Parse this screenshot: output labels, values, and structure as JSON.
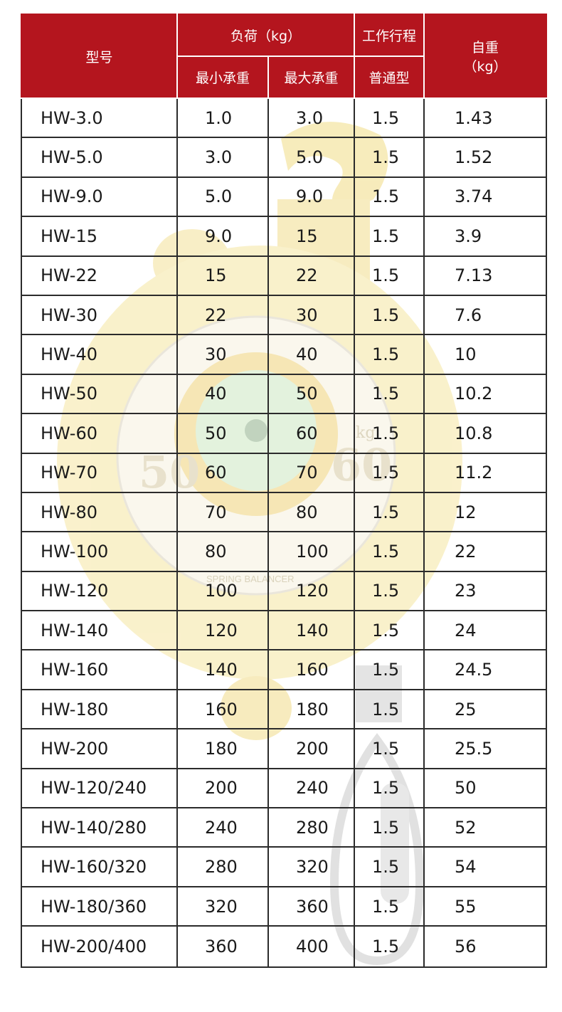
{
  "header": {
    "model": "型号",
    "load": "负荷（kg）",
    "load_min": "最小承重",
    "load_max": "最大承重",
    "stroke": "工作行程",
    "stroke_type": "普通型",
    "weight_line1": "自重",
    "weight_line2": "（kg）"
  },
  "rows": [
    {
      "model": "HW-3.0",
      "min": "1.0",
      "max": "3.0",
      "stroke": "1.5",
      "weight": "1.43"
    },
    {
      "model": "HW-5.0",
      "min": "3.0",
      "max": "5.0",
      "stroke": "1.5",
      "weight": "1.52"
    },
    {
      "model": "HW-9.0",
      "min": "5.0",
      "max": "9.0",
      "stroke": "1.5",
      "weight": "3.74"
    },
    {
      "model": "HW-15",
      "min": "9.0",
      "max": "15",
      "stroke": "1.5",
      "weight": "3.9"
    },
    {
      "model": "HW-22",
      "min": "15",
      "max": "22",
      "stroke": "1.5",
      "weight": "7.13"
    },
    {
      "model": "HW-30",
      "min": "22",
      "max": "30",
      "stroke": "1.5",
      "weight": "7.6"
    },
    {
      "model": "HW-40",
      "min": "30",
      "max": "40",
      "stroke": "1.5",
      "weight": "10"
    },
    {
      "model": "HW-50",
      "min": "40",
      "max": "50",
      "stroke": "1.5",
      "weight": "10.2"
    },
    {
      "model": "HW-60",
      "min": "50",
      "max": "60",
      "stroke": "1.5",
      "weight": "10.8"
    },
    {
      "model": "HW-70",
      "min": "60",
      "max": "70",
      "stroke": "1.5",
      "weight": "11.2"
    },
    {
      "model": "HW-80",
      "min": "70",
      "max": "80",
      "stroke": "1.5",
      "weight": "12"
    },
    {
      "model": "HW-100",
      "min": "80",
      "max": "100",
      "stroke": "1.5",
      "weight": "22"
    },
    {
      "model": "HW-120",
      "min": "100",
      "max": "120",
      "stroke": "1.5",
      "weight": "23"
    },
    {
      "model": "HW-140",
      "min": "120",
      "max": "140",
      "stroke": "1.5",
      "weight": "24"
    },
    {
      "model": "HW-160",
      "min": "140",
      "max": "160",
      "stroke": "1.5",
      "weight": "24.5"
    },
    {
      "model": "HW-180",
      "min": "160",
      "max": "180",
      "stroke": "1.5",
      "weight": "25"
    },
    {
      "model": "HW-200",
      "min": "180",
      "max": "200",
      "stroke": "1.5",
      "weight": "25.5"
    },
    {
      "model": "HW-120/240",
      "min": "200",
      "max": "240",
      "stroke": "1.5",
      "weight": "50"
    },
    {
      "model": "HW-140/280",
      "min": "240",
      "max": "280",
      "stroke": "1.5",
      "weight": "52"
    },
    {
      "model": "HW-160/320",
      "min": "280",
      "max": "320",
      "stroke": "1.5",
      "weight": "54"
    },
    {
      "model": "HW-180/360",
      "min": "320",
      "max": "360",
      "stroke": "1.5",
      "weight": "55"
    },
    {
      "model": "HW-200/400",
      "min": "360",
      "max": "400",
      "stroke": "1.5",
      "weight": "56"
    }
  ],
  "background_product": {
    "dial_left_number": "50",
    "dial_right_number": "60",
    "dial_unit": "kg",
    "dial_text": "SPRING BALANCER",
    "colors": {
      "body": "#f5e7a6",
      "dial_center": "#cde9c3"
    }
  }
}
